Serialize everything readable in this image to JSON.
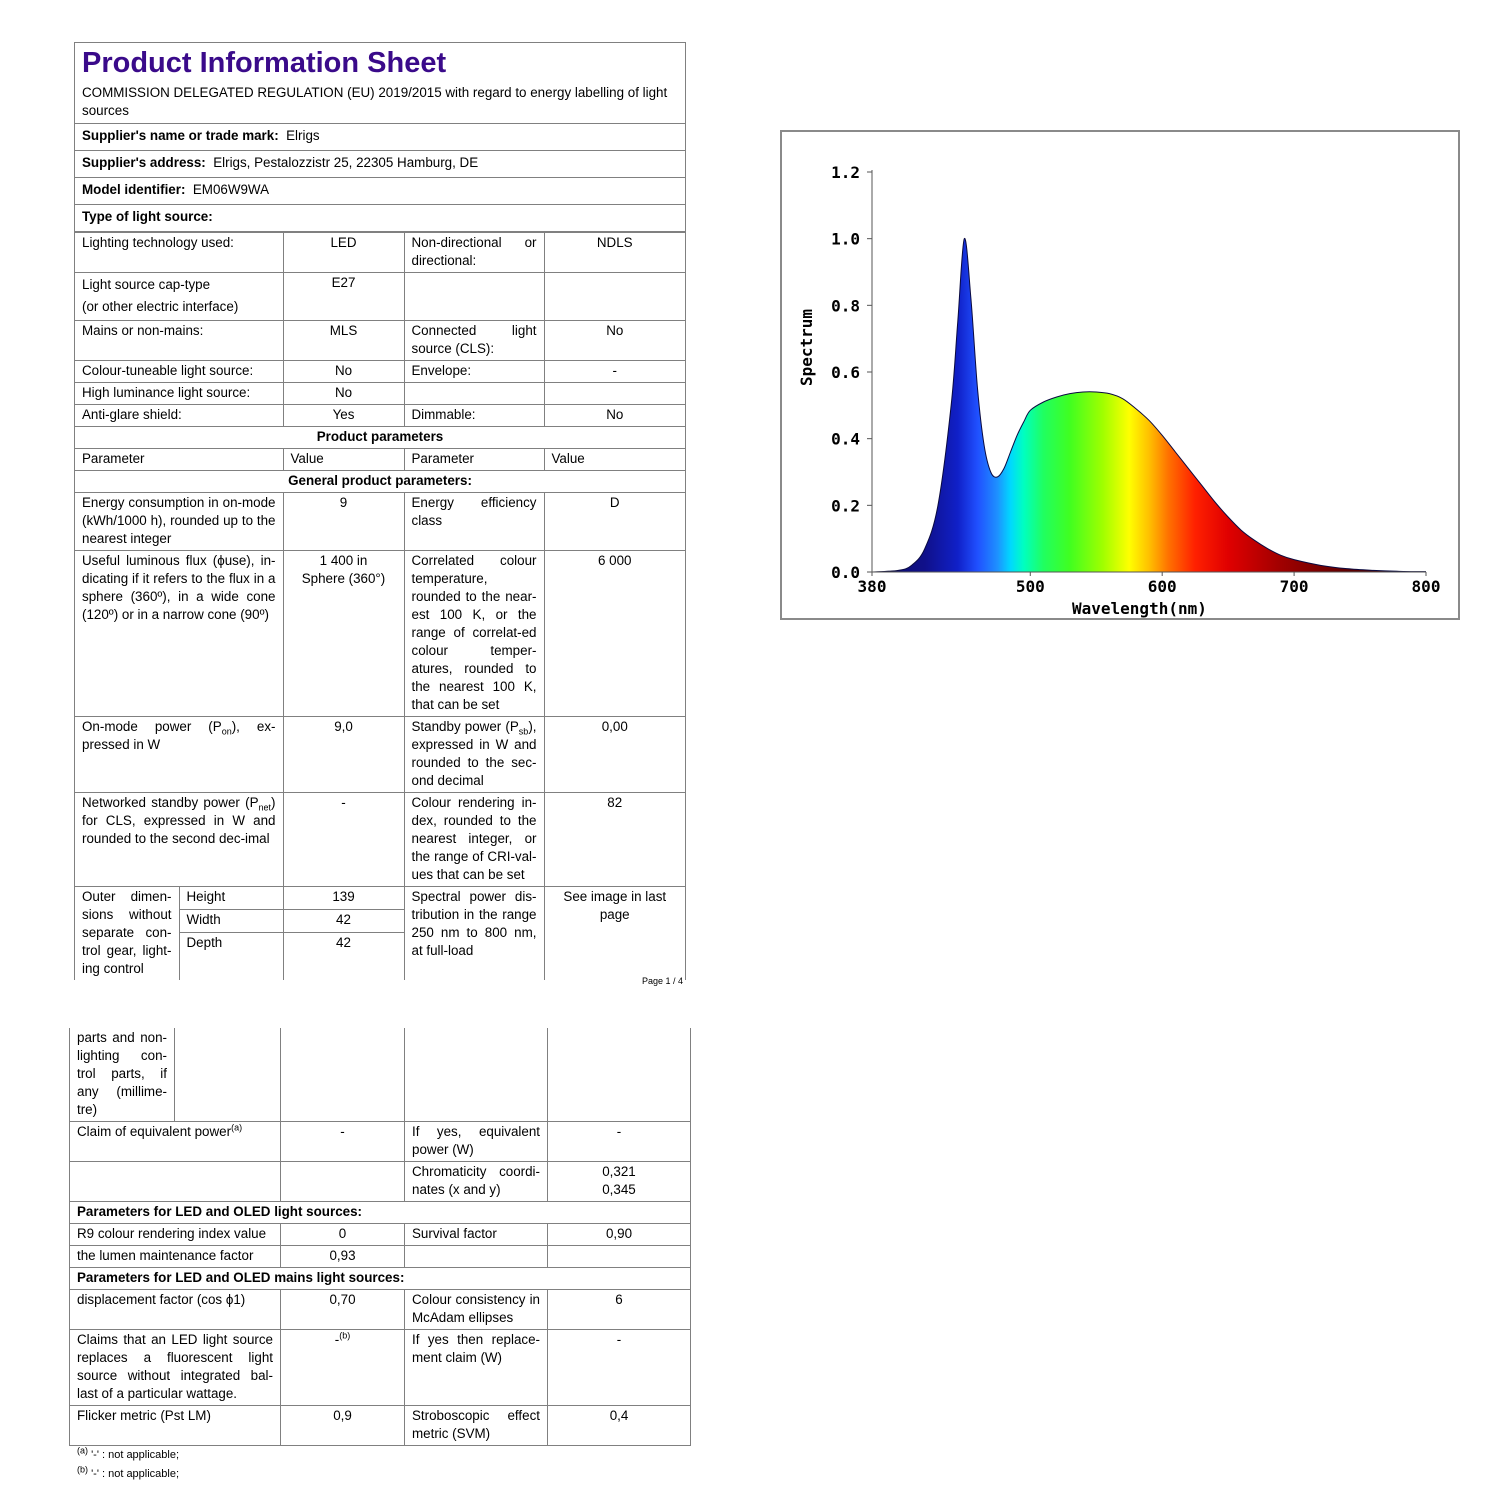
{
  "page1": {
    "title": "Product Information Sheet",
    "subtitle": "COMMISSION DELEGATED REGULATION (EU) 2019/2015 with regard to energy labelling of light sources",
    "supplier_name_label": "Supplier's name or trade mark:",
    "supplier_name": "Elrigs",
    "supplier_address_label": "Supplier's address:",
    "supplier_address": "Elrigs, Pestalozzistr 25, 22305 Hamburg, DE",
    "model_label": "Model identifier:",
    "model": "EM06W9WA",
    "type_label": "Type of light source:",
    "type_rows": [
      {
        "l1": "Lighting technology used:",
        "v1": "LED",
        "l2": "Non-directional or directional:",
        "v2": "NDLS"
      },
      {
        "l1": "Light source cap-type",
        "l1b": "(or other electric interface)",
        "v1": "E27",
        "l2": "",
        "v2": ""
      },
      {
        "l1": "Mains or non-mains:",
        "v1": "MLS",
        "l2": "Connected light source (CLS):",
        "v2": "No"
      },
      {
        "l1": "Colour-tuneable light source:",
        "v1": "No",
        "l2": "Envelope:",
        "v2": "-"
      },
      {
        "l1": "High luminance light source:",
        "v1": "No",
        "l2": "",
        "v2": ""
      },
      {
        "l1": "Anti-glare shield:",
        "v1": "Yes",
        "l2": "Dimmable:",
        "v2": "No"
      }
    ],
    "product_parameters": "Product parameters",
    "col_parameter": "Parameter",
    "col_value": "Value",
    "general_parameters": "General product parameters:",
    "energy_consumption_label": "Energy consumption in on-mode (kWh/1000 h), rounded up to the nearest integer",
    "energy_consumption": "9",
    "efficiency_class_label": "Energy efficiency class",
    "efficiency_class": "D",
    "flux_label": "Useful luminous flux (ϕuse), in-dicating if it refers to the flux in a sphere (360º), in a wide cone (120º) or in a narrow cone (90º)",
    "flux_value_1": "1 400 in",
    "flux_value_2": "Sphere (360°)",
    "cct_label": "Correlated colour temperature, rounded to the near-est 100 K, or the range of correlat-ed colour temper-atures, rounded to the nearest 100 K, that can be set",
    "cct": "6 000",
    "on_power_label_a": "On-mode power (P",
    "on_power_sub": "on",
    "on_power_label_b": "), ex-pressed in W",
    "on_power": "9,0",
    "standby_label_a": "Standby power (P",
    "standby_sub": "sb",
    "standby_label_b": "), expressed in W and rounded to the sec-ond decimal",
    "standby": "0,00",
    "net_standby_label_a": "Networked standby power (P",
    "net_standby_sub": "net",
    "net_standby_label_b": ") for CLS, expressed in W and rounded to the second dec-imal",
    "net_standby": "-",
    "cri_label": "Colour rendering in-dex, rounded to the nearest integer, or the range of CRI-val-ues that can be set",
    "cri": "82",
    "outer_dim_label": "Outer dimen-sions without separate con-trol gear, light-ing control",
    "height_label": "Height",
    "height": "139",
    "width_label": "Width",
    "width": "42",
    "depth_label": "Depth",
    "depth": "42",
    "spd_label": "Spectral power dis-tribution in the range 250 nm to 800 nm, at full-load",
    "spd_value": "See image in last page",
    "page_number": "Page 1 / 4"
  },
  "page2": {
    "outer_dim_cont": "parts and non-lighting con-trol parts, if any (millime-tre)",
    "equiv_power_label": "Claim of equivalent power",
    "equiv_power_sup": "(a)",
    "equiv_power": "-",
    "equiv_yes_label": "If yes, equivalent power (W)",
    "equiv_yes": "-",
    "chromaticity_label": "Chromaticity coordi-nates (x and y)",
    "chromaticity_x": "0,321",
    "chromaticity_y": "0,345",
    "led_section": "Parameters for LED and OLED light sources:",
    "r9_label": "R9 colour rendering index value",
    "r9": "0",
    "survival_label": "Survival factor",
    "survival": "0,90",
    "lumen_maint_label": "the lumen maintenance factor",
    "lumen_maint": "0,93",
    "mains_section": "Parameters for LED and OLED mains light sources:",
    "displacement_label": "displacement factor (cos ϕ1)",
    "displacement": "0,70",
    "consistency_label": "Colour consistency in McAdam ellipses",
    "consistency": "6",
    "replace_label": "Claims that an LED light source replaces a fluorescent light source without integrated bal-last of a particular wattage.",
    "replace_value": "-",
    "replace_sup": "(b)",
    "replace_yes_label": "If yes then replace-ment claim (W)",
    "replace_yes": "-",
    "flicker_label": "Flicker metric (Pst LM)",
    "flicker": "0,9",
    "svm_label": "Stroboscopic effect metric (SVM)",
    "svm": "0,4",
    "footnote_a_sup": "(a)",
    "footnote_a": "'-' : not applicable;",
    "footnote_b_sup": "(b)",
    "footnote_b": "'-' : not applicable;"
  },
  "chart_data": {
    "type": "area",
    "xlabel": "Wavelength(nm)",
    "ylabel": "Spectrum",
    "xlim": [
      380,
      800
    ],
    "ylim": [
      0,
      1.2
    ],
    "x_ticks": [
      "380",
      "500",
      "600",
      "700",
      "800"
    ],
    "y_ticks": [
      "0.0",
      "0.2",
      "0.4",
      "0.6",
      "0.8",
      "1.0",
      "1.2"
    ],
    "grid": false,
    "fill": "visible-spectrum gradient",
    "x": [
      380,
      400,
      410,
      420,
      430,
      440,
      445,
      450,
      455,
      460,
      465,
      470,
      475,
      480,
      485,
      490,
      495,
      500,
      510,
      520,
      530,
      540,
      550,
      560,
      570,
      580,
      590,
      600,
      610,
      620,
      630,
      640,
      650,
      660,
      670,
      680,
      690,
      700,
      720,
      740,
      760,
      780,
      800
    ],
    "y": [
      0,
      0.005,
      0.02,
      0.07,
      0.2,
      0.5,
      0.75,
      1.0,
      0.82,
      0.55,
      0.38,
      0.3,
      0.285,
      0.31,
      0.36,
      0.41,
      0.45,
      0.485,
      0.51,
      0.525,
      0.535,
      0.54,
      0.54,
      0.535,
      0.52,
      0.49,
      0.455,
      0.41,
      0.36,
      0.31,
      0.26,
      0.21,
      0.165,
      0.125,
      0.095,
      0.07,
      0.05,
      0.037,
      0.02,
      0.01,
      0.005,
      0.002,
      0.001
    ]
  }
}
